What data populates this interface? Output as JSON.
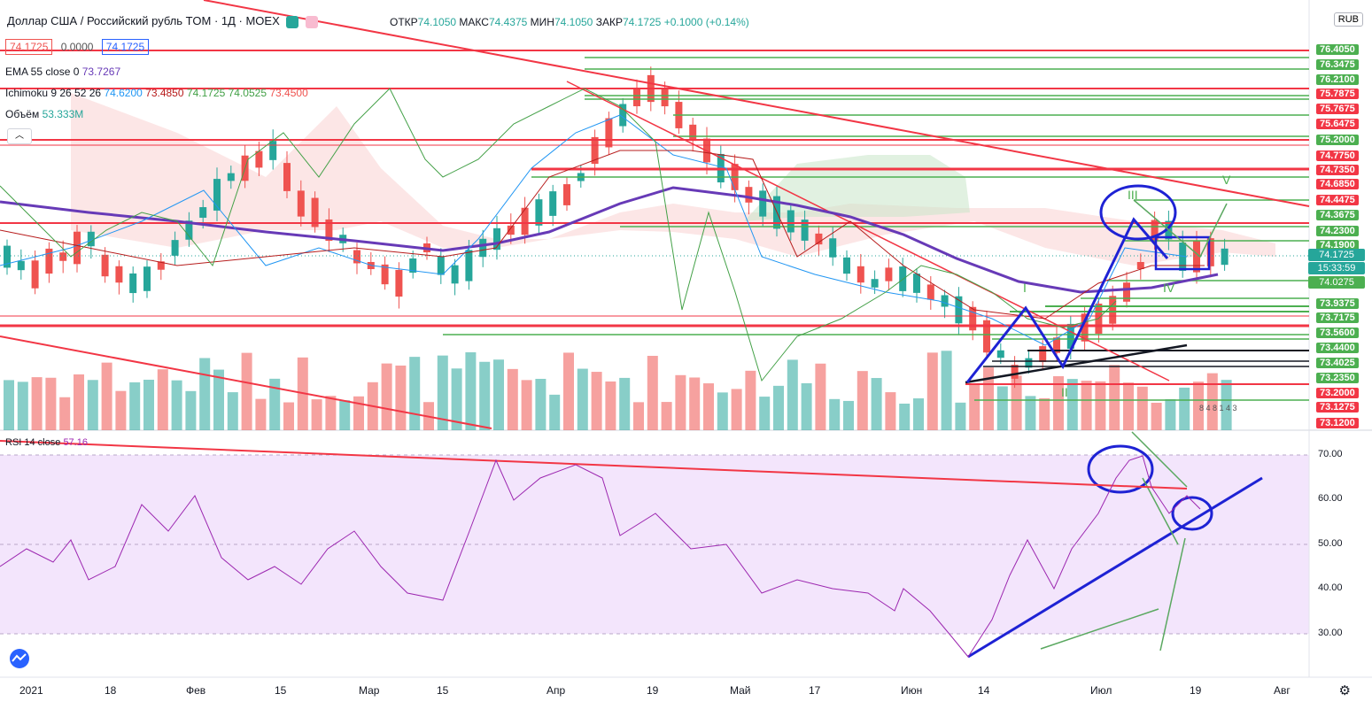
{
  "header": {
    "symbol": "Доллар США / Российский рубль TOM · 1Д · MOEX",
    "open_label": "ОТКР",
    "open": "74.1050",
    "high_label": "МАКС",
    "high": "74.4375",
    "low_label": "МИН",
    "low": "74.1050",
    "close_label": "ЗАКР",
    "close": "74.1725",
    "change": "+0.1000 (+0.14%)"
  },
  "price_boxes": {
    "bid": "74.1725",
    "spread": "0.0000",
    "ask": "74.1725"
  },
  "indicators": {
    "ema_label": "EMA 55 close 0",
    "ema_value": "73.7267",
    "ichimoku_label": "Ichimoku 9 26 52 26",
    "ichimoku_values": [
      "74.6200",
      "73.4850",
      "74.1725",
      "74.0525",
      "73.4500"
    ],
    "volume_label": "Объём",
    "volume_value": "53.333M",
    "rsi_label": "RSI 14 close",
    "rsi_value": "57.16"
  },
  "currency_button": "RUB",
  "price_axis": {
    "labels": [
      "76.4050",
      "76.3475",
      "76.2100",
      "75.7875",
      "75.7675",
      "75.6475",
      "75.2000",
      "74.7750",
      "74.7350",
      "74.6850",
      "74.4475",
      "74.3675",
      "74.2300",
      "74.1900",
      "73.9375",
      "73.7175",
      "73.5600",
      "73.4400",
      "73.4025",
      "73.2350",
      "73.2000",
      "73.1275",
      "73.1200"
    ],
    "current_price": "74.1725",
    "countdown": "15:33:59",
    "tag_a": "74.0275"
  },
  "rsi_axis": [
    "70.00",
    "60.00",
    "50.00",
    "40.00",
    "30.00"
  ],
  "time_axis": [
    "2021",
    "18",
    "Фев",
    "15",
    "Мар",
    "15",
    "Апр",
    "19",
    "Май",
    "17",
    "Июн",
    "14",
    "Июл",
    "19",
    "Авг"
  ],
  "colors": {
    "up": "#26a69a",
    "down": "#ef5350",
    "hline_red": "#f23645",
    "hline_green": "#4caf50",
    "ema": "#673ab7",
    "rsi": "#9c27b0",
    "blue_draw": "#1e22d4"
  },
  "icons": [
    "tradingview-logo-icon",
    "settings-gear-icon",
    "collapse-arrows-icon"
  ],
  "vol_label_text": "8 4 8 1 4 3"
}
